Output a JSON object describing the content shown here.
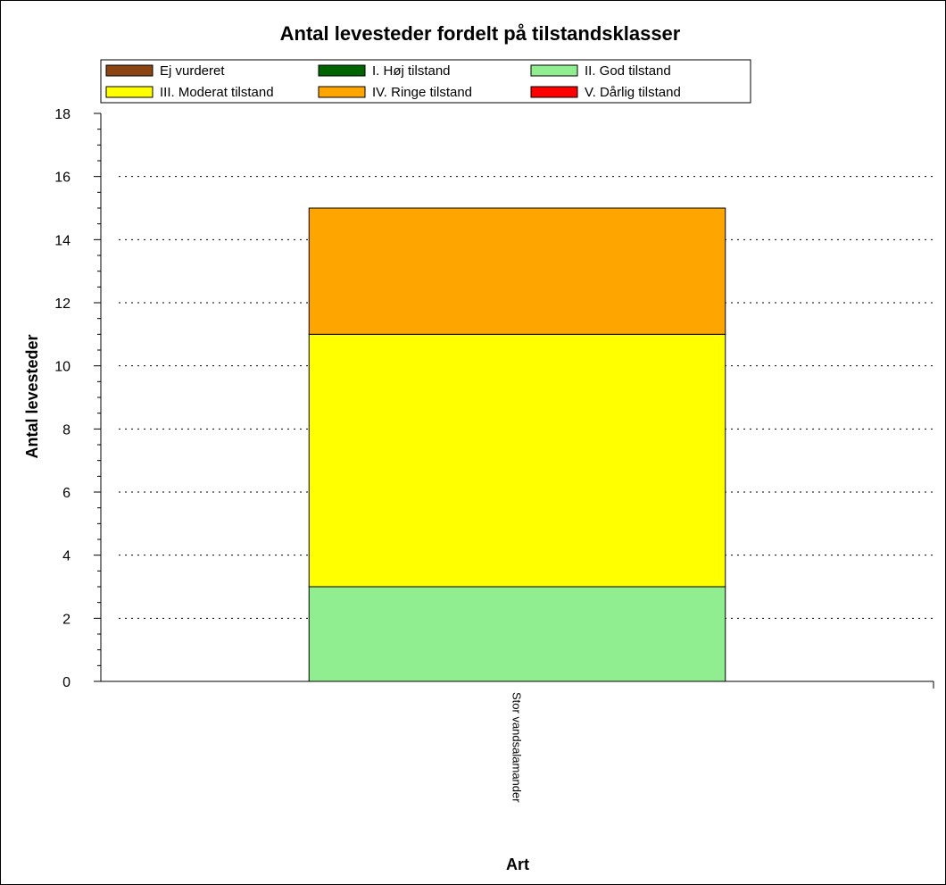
{
  "chart_data": {
    "type": "bar",
    "stacked": true,
    "title": "Antal levesteder fordelt på tilstandsklasser",
    "xlabel": "Art",
    "ylabel": "Antal levesteder",
    "categories": [
      "Stor vandsalamander"
    ],
    "ylim": [
      0,
      18
    ],
    "yticks": [
      0,
      2,
      4,
      6,
      8,
      10,
      12,
      14,
      16,
      18
    ],
    "grid": true,
    "legend_position": "top",
    "series": [
      {
        "name": "Ej vurderet",
        "color": "#8B4513",
        "values": [
          0
        ]
      },
      {
        "name": "I. Høj tilstand",
        "color": "#006400",
        "values": [
          0
        ]
      },
      {
        "name": "II. God tilstand",
        "color": "#90EE90",
        "values": [
          3
        ]
      },
      {
        "name": "III. Moderat tilstand",
        "color": "#FFFF00",
        "values": [
          8
        ]
      },
      {
        "name": "IV. Ringe tilstand",
        "color": "#FFA500",
        "values": [
          4
        ]
      },
      {
        "name": "V. Dårlig tilstand",
        "color": "#FF0000",
        "values": [
          0
        ]
      }
    ]
  }
}
